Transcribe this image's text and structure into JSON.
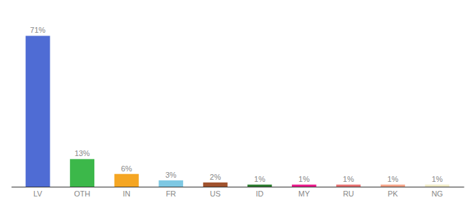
{
  "chart_data": {
    "type": "bar",
    "categories": [
      "LV",
      "OTH",
      "IN",
      "FR",
      "US",
      "ID",
      "MY",
      "RU",
      "PK",
      "NG"
    ],
    "values": [
      71,
      13,
      6,
      3,
      2,
      1,
      1,
      1,
      1,
      1
    ],
    "value_labels": [
      "71%",
      "13%",
      "6%",
      "3%",
      "2%",
      "1%",
      "1%",
      "1%",
      "1%",
      "1%"
    ],
    "colors": [
      "#4f6cd4",
      "#3cb84a",
      "#f5a623",
      "#7ec8e3",
      "#a0522d",
      "#2e7d32",
      "#e91e8c",
      "#e57373",
      "#f4a58a",
      "#f0ecc8"
    ],
    "ylim": [
      0,
      80
    ],
    "data_labels": true,
    "tick_labels": "x"
  }
}
